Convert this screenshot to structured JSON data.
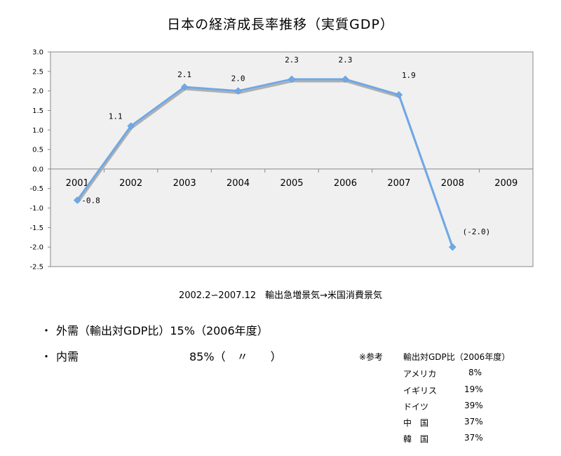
{
  "title": "日本の経済成長率推移（実質GDP）",
  "subtitle": "2002.2∽2007.12　輸出急増景気→米国消費景気",
  "demand": {
    "bullet": "・",
    "external": {
      "label": "外需（輸出対GDP比）",
      "value": "15%（2006年度）"
    },
    "internal": {
      "label": "内需",
      "value": "85%（　〃　　）"
    }
  },
  "reference": {
    "prefix": "※参考",
    "header": "輸出対GDP比（2006年度）",
    "rows": [
      {
        "country": "アメリカ",
        "value": "8%"
      },
      {
        "country": "イギリス",
        "value": "19%"
      },
      {
        "country": "ドイツ",
        "value": "39%"
      },
      {
        "country": "中　国",
        "value": "37%"
      },
      {
        "country": "韓　国",
        "value": "37%"
      }
    ]
  },
  "chart_data": {
    "type": "line",
    "title": "日本の経済成長率推移（実質GDP）",
    "categories": [
      "2001",
      "2002",
      "2003",
      "2004",
      "2005",
      "2006",
      "2007",
      "2008",
      "2009"
    ],
    "series": [
      {
        "values": [
          -0.8,
          1.1,
          2.1,
          2.0,
          2.3,
          2.3,
          1.9,
          -2.0,
          null
        ]
      }
    ],
    "data_labels": [
      "-0.8",
      "1.1",
      "2.1",
      "2.0",
      "2.3",
      "2.3",
      "1.9",
      "(-2.0)",
      ""
    ],
    "y_ticks": [
      "3.0",
      "2.5",
      "2.0",
      "1.5",
      "1.0",
      "0.5",
      "0.0",
      "-0.5",
      "-1.0",
      "-1.5",
      "-2.0",
      "-2.5"
    ],
    "ylim": [
      -2.5,
      3.0
    ],
    "grid": false,
    "colors": {
      "line": "#6fa8e6",
      "shadow": "#b0b0b0",
      "plot_bg": "#f0f0f0",
      "axis": "#888888"
    }
  }
}
